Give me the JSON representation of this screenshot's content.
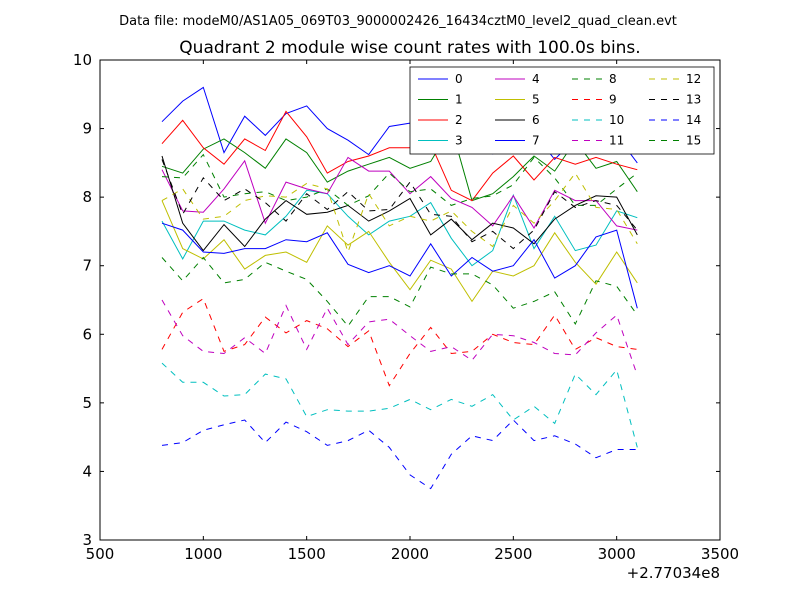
{
  "suptitle": "Data file: modeM0/AS1A05_069T03_9000002426_16434cztM0_level2_quad_clean.evt",
  "chart_data": {
    "type": "line",
    "title": "Quadrant 2 module wise count rates with 100.0s bins.",
    "xlabel": "",
    "ylabel": "",
    "x_offset_label": "+2.77034e8",
    "xlim": [
      500,
      3500
    ],
    "ylim": [
      3,
      10
    ],
    "xticks": [
      500,
      1000,
      1500,
      2000,
      2500,
      3000,
      3500
    ],
    "yticks": [
      3,
      4,
      5,
      6,
      7,
      8,
      9,
      10
    ],
    "grid": false,
    "legend_position": "top-right",
    "legend_columns": 4,
    "x": [
      800,
      900,
      1000,
      1100,
      1200,
      1300,
      1400,
      1500,
      1600,
      1700,
      1800,
      1900,
      2000,
      2100,
      2200,
      2300,
      2400,
      2500,
      2600,
      2700,
      2800,
      2900,
      3000,
      3100
    ],
    "series": [
      {
        "name": "0",
        "color": "#0000ff",
        "dash": "solid",
        "values": [
          9.1,
          9.4,
          9.6,
          8.65,
          9.18,
          8.9,
          9.22,
          9.33,
          9.0,
          8.83,
          8.62,
          9.03,
          9.08,
          9.28,
          8.88,
          8.82,
          8.63,
          8.85,
          8.93,
          8.55,
          8.85,
          8.68,
          8.9,
          8.5
        ]
      },
      {
        "name": "1",
        "color": "#008000",
        "dash": "solid",
        "values": [
          8.45,
          8.35,
          8.7,
          8.85,
          8.65,
          8.42,
          8.85,
          8.65,
          8.22,
          8.38,
          8.48,
          8.58,
          8.42,
          8.52,
          9.02,
          7.95,
          8.05,
          8.3,
          8.6,
          8.38,
          8.82,
          8.42,
          8.52,
          8.08
        ]
      },
      {
        "name": "2",
        "color": "#ff0000",
        "dash": "solid",
        "values": [
          8.78,
          9.12,
          8.72,
          8.48,
          8.85,
          8.68,
          9.25,
          8.88,
          8.35,
          8.52,
          8.6,
          8.72,
          8.72,
          8.78,
          8.1,
          7.95,
          8.35,
          8.6,
          8.25,
          8.58,
          8.48,
          8.58,
          8.48,
          8.4
        ]
      },
      {
        "name": "3",
        "color": "#00bfbf",
        "dash": "solid",
        "values": [
          7.65,
          7.1,
          7.65,
          7.65,
          7.52,
          7.45,
          7.72,
          8.1,
          8.05,
          7.72,
          7.45,
          7.65,
          7.72,
          7.92,
          7.4,
          7.0,
          7.22,
          8.03,
          7.25,
          7.72,
          7.22,
          7.3,
          7.8,
          7.7
        ]
      },
      {
        "name": "4",
        "color": "#bf00bf",
        "dash": "solid",
        "values": [
          8.4,
          7.8,
          7.78,
          8.12,
          8.53,
          7.62,
          8.22,
          8.12,
          8.05,
          8.58,
          8.38,
          8.38,
          8.05,
          8.3,
          7.98,
          7.85,
          7.58,
          8.02,
          7.55,
          8.1,
          7.95,
          7.95,
          7.58,
          7.52
        ]
      },
      {
        "name": "5",
        "color": "#bfbf00",
        "dash": "solid",
        "values": [
          7.95,
          7.25,
          7.1,
          7.38,
          6.95,
          7.15,
          7.2,
          7.05,
          7.58,
          7.3,
          7.5,
          7.05,
          6.65,
          7.08,
          6.95,
          6.48,
          6.92,
          6.85,
          7.0,
          7.48,
          7.05,
          6.73,
          7.2,
          6.75
        ]
      },
      {
        "name": "6",
        "color": "#000000",
        "dash": "solid",
        "values": [
          8.6,
          7.62,
          7.22,
          7.6,
          7.28,
          7.68,
          7.95,
          7.75,
          7.78,
          7.88,
          7.65,
          7.8,
          7.98,
          7.45,
          7.68,
          7.38,
          7.62,
          7.55,
          7.32,
          7.68,
          7.88,
          8.02,
          8.0,
          7.45
        ]
      },
      {
        "name": "7",
        "color": "#0000ff",
        "dash": "solid",
        "values": [
          7.62,
          7.52,
          7.2,
          7.18,
          7.25,
          7.25,
          7.38,
          7.35,
          7.48,
          7.02,
          6.9,
          7.0,
          6.85,
          7.32,
          6.85,
          7.12,
          6.92,
          7.0,
          7.38,
          6.82,
          7.0,
          7.42,
          7.52,
          6.38
        ]
      },
      {
        "name": "8",
        "color": "#008000",
        "dash": "dashed",
        "values": [
          8.3,
          8.28,
          8.62,
          8.0,
          8.05,
          8.08,
          7.95,
          8.0,
          8.12,
          7.88,
          8.02,
          8.35,
          8.08,
          8.12,
          7.88,
          7.98,
          8.02,
          8.18,
          8.58,
          8.28,
          7.88,
          7.88,
          8.12,
          8.35
        ]
      },
      {
        "name": "9",
        "color": "#ff0000",
        "dash": "dashed",
        "values": [
          5.78,
          6.32,
          6.52,
          5.75,
          5.85,
          6.25,
          6.02,
          6.2,
          6.08,
          5.82,
          6.05,
          5.25,
          5.72,
          6.1,
          5.72,
          5.75,
          6.0,
          5.88,
          5.85,
          6.28,
          5.78,
          5.95,
          5.82,
          5.78
        ]
      },
      {
        "name": "10",
        "color": "#00bfbf",
        "dash": "dashed",
        "values": [
          5.58,
          5.3,
          5.3,
          5.1,
          5.12,
          5.42,
          5.35,
          4.8,
          4.9,
          4.88,
          4.88,
          4.92,
          5.05,
          4.9,
          5.05,
          4.95,
          5.12,
          4.75,
          4.95,
          4.7,
          5.42,
          5.12,
          5.48,
          4.35
        ]
      },
      {
        "name": "11",
        "color": "#bf00bf",
        "dash": "dashed",
        "values": [
          6.5,
          5.98,
          5.75,
          5.72,
          5.95,
          5.72,
          6.42,
          5.78,
          6.38,
          5.85,
          6.18,
          6.22,
          5.98,
          5.75,
          5.82,
          5.62,
          6.0,
          5.98,
          5.88,
          5.72,
          5.7,
          6.02,
          6.28,
          5.4
        ]
      },
      {
        "name": "12",
        "color": "#bfbf00",
        "dash": "dashed",
        "values": [
          7.95,
          8.12,
          7.68,
          7.72,
          7.95,
          8.02,
          8.0,
          8.2,
          8.12,
          7.2,
          8.05,
          7.58,
          7.72,
          7.65,
          7.8,
          7.5,
          7.28,
          7.88,
          7.62,
          7.95,
          8.35,
          7.85,
          7.82,
          7.32
        ]
      },
      {
        "name": "13",
        "color": "#000000",
        "dash": "dashed",
        "values": [
          8.55,
          7.75,
          8.28,
          7.95,
          8.12,
          7.92,
          7.65,
          8.05,
          7.82,
          8.08,
          7.8,
          7.82,
          8.22,
          7.75,
          7.72,
          7.35,
          7.5,
          7.25,
          7.52,
          8.08,
          7.85,
          7.95,
          7.88,
          7.52
        ]
      },
      {
        "name": "14",
        "color": "#0000ff",
        "dash": "dashed",
        "values": [
          4.38,
          4.42,
          4.6,
          4.68,
          4.75,
          4.42,
          4.72,
          4.58,
          4.38,
          4.45,
          4.6,
          4.35,
          3.95,
          3.75,
          4.25,
          4.52,
          4.45,
          4.75,
          4.45,
          4.52,
          4.4,
          4.2,
          4.32,
          4.32
        ]
      },
      {
        "name": "15",
        "color": "#008000",
        "dash": "dashed",
        "values": [
          7.12,
          6.78,
          7.12,
          6.75,
          6.8,
          7.05,
          6.92,
          6.8,
          6.48,
          6.12,
          6.55,
          6.55,
          6.4,
          6.98,
          6.88,
          6.88,
          6.72,
          6.38,
          6.48,
          6.62,
          6.15,
          6.78,
          6.7,
          6.28
        ]
      }
    ]
  }
}
